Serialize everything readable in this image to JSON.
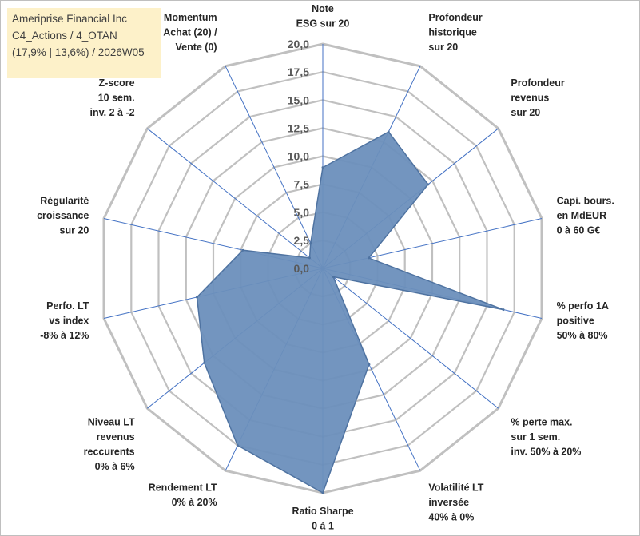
{
  "title_box": {
    "line1": "Ameriprise Financial Inc",
    "line2": "C4_Actions / 4_OTAN",
    "line3": "(17,9% | 13,6%) / 2026W05"
  },
  "chart_data": {
    "type": "radar",
    "rlim": [
      0,
      20
    ],
    "ticks": [
      0,
      2.5,
      5,
      7.5,
      10,
      12.5,
      15,
      17.5,
      20
    ],
    "tick_labels": [
      "0,0",
      "2,5",
      "5,0",
      "7,5",
      "10,0",
      "12,5",
      "15,0",
      "17,5",
      "20,0"
    ],
    "categories": [
      [
        "Note",
        "ESG sur 20"
      ],
      [
        "Profondeur",
        "historique",
        "sur 20"
      ],
      [
        "Profondeur",
        "revenus",
        "sur 20"
      ],
      [
        "Capi. bours.",
        "en MdEUR",
        "0 à 60 G€"
      ],
      [
        "% perfo 1A",
        "positive",
        "50% à 80%"
      ],
      [
        "% perte max.",
        "sur 1 sem.",
        "inv. 50% à 20%"
      ],
      [
        "Volatilité LT",
        "inversée",
        "40% à 0%"
      ],
      [
        "Ratio Sharpe",
        "0 à 1"
      ],
      [
        "Rendement LT",
        "0% à 20%"
      ],
      [
        "Niveau LT",
        "revenus",
        "reccurents",
        "0% à 6%"
      ],
      [
        "Perfo. LT",
        "vs index",
        "-8% à 12%"
      ],
      [
        "Régularité",
        "croissance",
        "sur 20"
      ],
      [
        "Z-score",
        "10 sem.",
        "inv. 2 à -2"
      ],
      [
        "Momentum",
        "Achat (20) /",
        "Vente (0)"
      ]
    ],
    "series": [
      {
        "name": "Ameriprise Financial Inc",
        "values": [
          9,
          13.5,
          12,
          4.2,
          16.5,
          1.2,
          9.5,
          20,
          17.5,
          13.5,
          11.5,
          7.3,
          1.5,
          2.5
        ]
      }
    ],
    "colors": {
      "fill": "#6b8fbc",
      "stroke": "#4f73a1",
      "grid": "#c0c0c0",
      "spoke": "#4472c4"
    }
  }
}
